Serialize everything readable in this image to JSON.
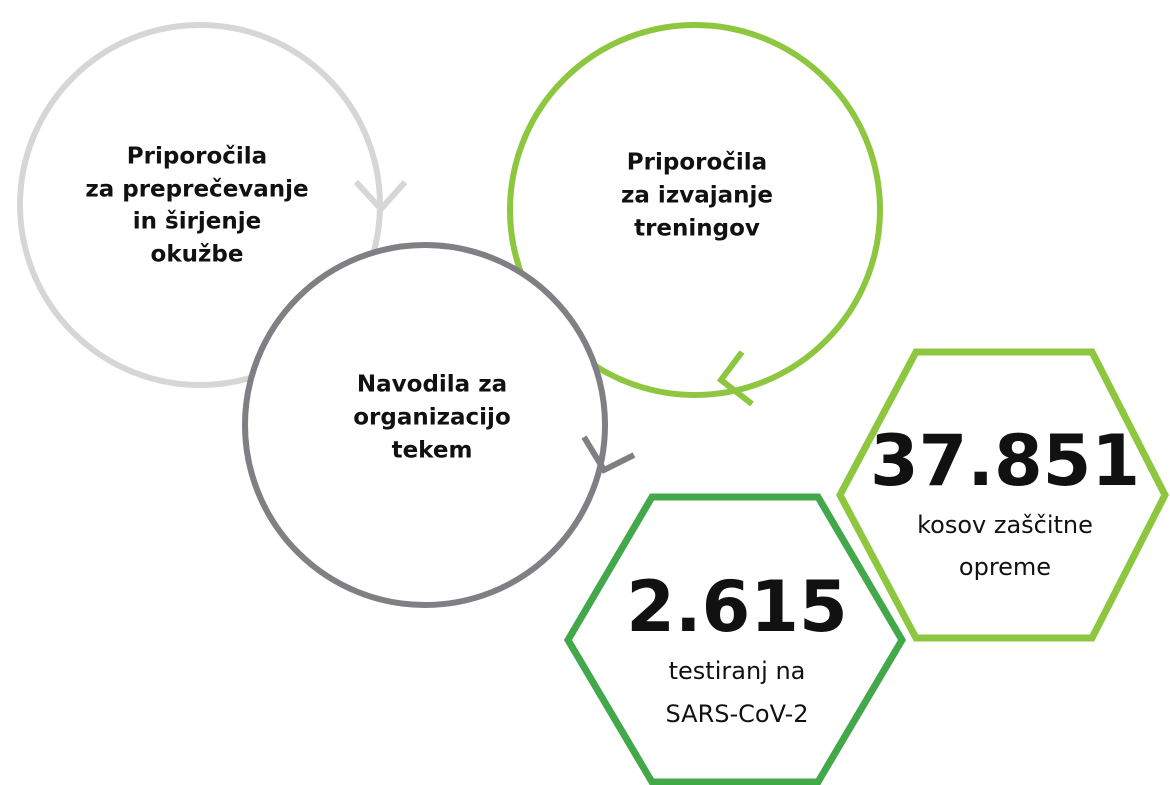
{
  "nodes": [
    {
      "lines": [
        "Priporočila",
        "za preprečevanje",
        "in širjenje",
        "okužbe"
      ]
    },
    {
      "lines": [
        "Priporočila",
        "za izvajanje",
        "treningov"
      ]
    },
    {
      "lines": [
        "Navodila za",
        "organizacijo",
        "tekem"
      ]
    }
  ],
  "stats": [
    {
      "number": "37.851",
      "lines": [
        "kosov zaščitne",
        "opreme"
      ]
    },
    {
      "number": "2.615",
      "lines": [
        "testiranj na",
        "SARS-CoV-2"
      ]
    }
  ]
}
